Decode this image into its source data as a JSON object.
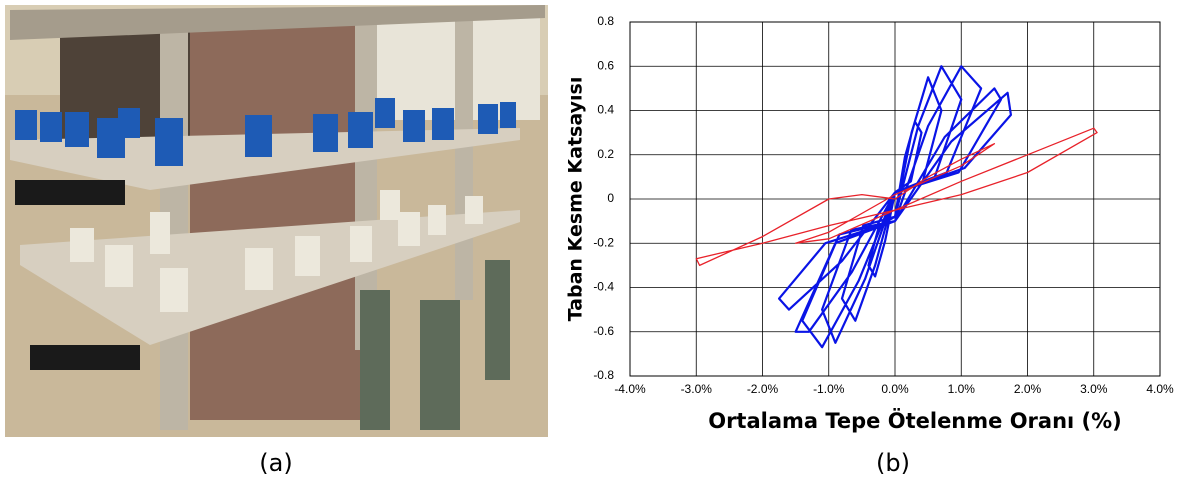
{
  "chart_data": {
    "type": "line",
    "x_label": "Ortalama Tepe Ötelenme Oranı (%)",
    "y_label": "Taban Kesme Katsayısı",
    "xlim": [
      -4,
      4
    ],
    "ylim": [
      -0.8,
      0.8
    ],
    "xticks": [
      {
        "value": -4,
        "label": "-4.0%"
      },
      {
        "value": -3,
        "label": "-3.0%"
      },
      {
        "value": -2,
        "label": "-2.0%"
      },
      {
        "value": -1,
        "label": "-1.0%"
      },
      {
        "value": 0,
        "label": "0.0%"
      },
      {
        "value": 1,
        "label": "1.0%"
      },
      {
        "value": 2,
        "label": "2.0%"
      },
      {
        "value": 3,
        "label": "3.0%"
      },
      {
        "value": 4,
        "label": "4.0%"
      }
    ],
    "yticks": [
      -0.8,
      -0.6,
      -0.4,
      -0.2,
      0,
      0.2,
      0.4,
      0.6,
      0.8
    ],
    "grid": true,
    "series": [
      {
        "color": "#0a14e6",
        "x": [
          0,
          0.15,
          0.3,
          0.4,
          0.24,
          0,
          -0.15,
          -0.3,
          -0.4,
          -0.24,
          0,
          0.25,
          0.5,
          0.7,
          0.42,
          0,
          -0.3,
          -0.6,
          -0.8,
          -0.48,
          0,
          0.35,
          0.7,
          1.0,
          0.6,
          0,
          -0.45,
          -0.9,
          -1.1,
          -0.66,
          0,
          0.5,
          1.0,
          1.3,
          0.78,
          0,
          -0.55,
          -1.1,
          -1.4,
          -0.84,
          0,
          0.75,
          1.5,
          1.6,
          0.96,
          0,
          -0.65,
          -1.3,
          -1.5,
          -0.9,
          0,
          0.85,
          1.7,
          1.75,
          1.05,
          0,
          -0.8,
          -1.6,
          -1.75,
          -1.05,
          0
        ],
        "values": [
          -0.08,
          0.19,
          0.35,
          0.3,
          0.08,
          0.03,
          -0.19,
          -0.35,
          -0.3,
          -0.12,
          -0.08,
          0.3,
          0.55,
          0.4,
          0.08,
          0.03,
          -0.3,
          -0.55,
          -0.45,
          -0.12,
          -0.08,
          0.33,
          0.6,
          0.45,
          0.1,
          0.03,
          -0.36,
          -0.65,
          -0.5,
          -0.14,
          -0.1,
          0.33,
          0.6,
          0.5,
          0.12,
          0.03,
          -0.37,
          -0.67,
          -0.55,
          -0.16,
          -0.1,
          0.28,
          0.5,
          0.45,
          0.12,
          0.03,
          -0.33,
          -0.6,
          -0.6,
          -0.2,
          -0.1,
          0.26,
          0.48,
          0.38,
          0.14,
          0.03,
          -0.28,
          -0.5,
          -0.45,
          -0.2,
          -0.1
        ]
      },
      {
        "color": "#e8222a",
        "x": [
          0,
          0.5,
          1.0,
          1.5,
          1.0,
          0,
          -1.0,
          -1.5,
          -1.0,
          0,
          1.0,
          2.0,
          3.0,
          3.05,
          2.0,
          1.0,
          0,
          -1.0,
          -2.0,
          -3.0,
          -2.95,
          -2.0,
          -1.0,
          -0.5,
          0
        ],
        "values": [
          0,
          0.1,
          0.18,
          0.25,
          0.15,
          0.02,
          -0.15,
          -0.2,
          -0.18,
          -0.05,
          0.08,
          0.2,
          0.32,
          0.3,
          0.12,
          0.02,
          -0.05,
          -0.12,
          -0.2,
          -0.27,
          -0.3,
          -0.17,
          0,
          0.02,
          0
        ]
      }
    ]
  },
  "captions": [
    "(a)",
    "(b)"
  ]
}
